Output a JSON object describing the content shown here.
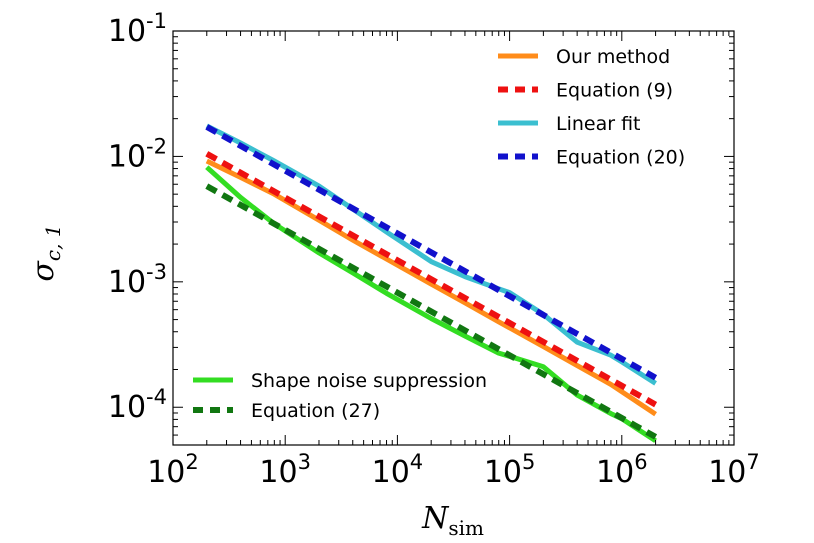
{
  "chart_data": {
    "type": "line",
    "xscale": "log",
    "yscale": "log",
    "xlim": [
      100,
      10000000
    ],
    "ylim": [
      5e-05,
      0.1
    ],
    "grid": false,
    "xlabel": {
      "main": "N",
      "sub": "sim"
    },
    "ylabel": {
      "main": "σ",
      "sub": "c, 1"
    },
    "x_ticks": [
      {
        "base": "10",
        "exp": "2"
      },
      {
        "base": "10",
        "exp": "3"
      },
      {
        "base": "10",
        "exp": "4"
      },
      {
        "base": "10",
        "exp": "5"
      },
      {
        "base": "10",
        "exp": "6"
      },
      {
        "base": "10",
        "exp": "7"
      }
    ],
    "y_ticks": [
      {
        "base": "10",
        "exp": "-1"
      },
      {
        "base": "10",
        "exp": "-2"
      },
      {
        "base": "10",
        "exp": "-3"
      },
      {
        "base": "10",
        "exp": "-4"
      }
    ],
    "series": [
      {
        "name": "Our method",
        "style": "solid",
        "color": "#ff8c1a",
        "legend": "top-right",
        "x": [
          200,
          400,
          800,
          2000,
          4000,
          8000,
          20000,
          40000,
          80000,
          200000,
          400000,
          800000,
          2000000
        ],
        "y": [
          0.0092,
          0.0068,
          0.005,
          0.0031,
          0.00215,
          0.00152,
          0.00096,
          0.00068,
          0.00048,
          0.000305,
          0.000215,
          0.000152,
          8.8e-05
        ]
      },
      {
        "name": "Equation (9)",
        "style": "dashed",
        "color": "#ee1111",
        "legend": "top-right",
        "x": [
          200,
          2000000
        ],
        "y": [
          0.0105,
          0.000105
        ]
      },
      {
        "name": "Linear fit",
        "style": "solid",
        "color": "#3bbfd0",
        "legend": "top-right",
        "x": [
          200,
          400,
          800,
          2000,
          4000,
          8000,
          20000,
          40000,
          80000,
          100000,
          200000,
          400000,
          800000,
          1000000,
          2000000
        ],
        "y": [
          0.0175,
          0.0128,
          0.0092,
          0.0058,
          0.0038,
          0.0025,
          0.00145,
          0.0011,
          0.00088,
          0.00082,
          0.00055,
          0.00033,
          0.00026,
          0.00023,
          0.000155
        ]
      },
      {
        "name": "Equation (20)",
        "style": "dashed",
        "color": "#1111cc",
        "legend": "top-right",
        "x": [
          200,
          2000000
        ],
        "y": [
          0.0172,
          0.000172
        ]
      },
      {
        "name": "Shape noise suppression",
        "style": "solid",
        "color": "#33dd22",
        "legend": "bottom-left",
        "x": [
          200,
          400,
          800,
          2000,
          4000,
          8000,
          20000,
          40000,
          80000,
          100000,
          200000,
          400000,
          800000,
          1000000,
          2000000
        ],
        "y": [
          0.0082,
          0.0047,
          0.0029,
          0.0017,
          0.00118,
          0.00081,
          0.00051,
          0.00037,
          0.00027,
          0.000255,
          0.00021,
          0.000125,
          8.9e-05,
          8.1e-05,
          5.4e-05
        ]
      },
      {
        "name": "Equation (27)",
        "style": "dashed",
        "color": "#117711",
        "legend": "bottom-left",
        "x": [
          200,
          2000000
        ],
        "y": [
          0.0058,
          5.8e-05
        ]
      }
    ]
  }
}
